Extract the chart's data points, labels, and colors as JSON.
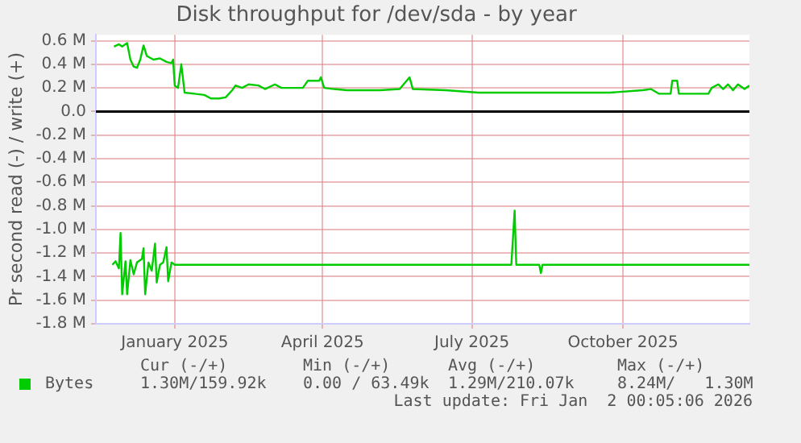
{
  "chart_data": {
    "type": "line",
    "title": "Disk throughput for /dev/sda - by year",
    "ylabel": "Pr second read (-) / write (+)",
    "xlim": [
      "2024-11-14",
      "2025-12-17"
    ],
    "xticks": [
      {
        "value": "2025-01-01",
        "label": "January 2025"
      },
      {
        "value": "2025-04-01",
        "label": "April 2025"
      },
      {
        "value": "2025-07-01",
        "label": "July 2025"
      },
      {
        "value": "2025-10-01",
        "label": "October 2025"
      }
    ],
    "ylim": [
      -1.8,
      0.65
    ],
    "yticks": [
      {
        "value": -1.8,
        "label": "-1.8 M"
      },
      {
        "value": -1.6,
        "label": "-1.6 M"
      },
      {
        "value": -1.4,
        "label": "-1.4 M"
      },
      {
        "value": -1.2,
        "label": "-1.2 M"
      },
      {
        "value": -1.0,
        "label": "-1.0 M"
      },
      {
        "value": -0.8,
        "label": "-0.8 M"
      },
      {
        "value": -0.6,
        "label": "-0.6 M"
      },
      {
        "value": -0.4,
        "label": "-0.4 M"
      },
      {
        "value": -0.2,
        "label": "-0.2 M"
      },
      {
        "value": 0,
        "label": "0.0"
      },
      {
        "value": 0.2,
        "label": "0.2 M"
      },
      {
        "value": 0.4,
        "label": "0.4 M"
      },
      {
        "value": 0.6,
        "label": "0.6 M"
      }
    ],
    "grid": true,
    "legend": "bottom",
    "marker": "none",
    "line_style": "solid",
    "ref_lines": [
      {
        "axis": "y",
        "value": 0,
        "color": "#000000"
      }
    ],
    "series": [
      {
        "name": "Bytes",
        "color": "#00cc00",
        "x": [
          "2024-11-25",
          "2024-11-28",
          "2024-11-30",
          "2024-12-03",
          "2024-12-05",
          "2024-12-07",
          "2024-12-09",
          "2024-12-11",
          "2024-12-13",
          "2024-12-15",
          "2024-12-19",
          "2024-12-23",
          "2024-12-27",
          "2024-12-30",
          "2024-12-31",
          "2025-01-01",
          "2025-01-03",
          "2025-01-05",
          "2025-01-07",
          "2025-01-13",
          "2025-01-19",
          "2025-01-23",
          "2025-01-28",
          "2025-02-01",
          "2025-02-05",
          "2025-02-07",
          "2025-02-11",
          "2025-02-15",
          "2025-02-21",
          "2025-02-25",
          "2025-03-03",
          "2025-03-07",
          "2025-03-15",
          "2025-03-20",
          "2025-03-23",
          "2025-03-30",
          "2025-03-31",
          "2025-04-02",
          "2025-04-08",
          "2025-04-16",
          "2025-04-24",
          "2025-05-06",
          "2025-05-18",
          "2025-05-24",
          "2025-05-26",
          "2025-06-15",
          "2025-07-05",
          "2025-07-25",
          "2025-08-14",
          "2025-09-03",
          "2025-09-23",
          "2025-10-13",
          "2025-10-18",
          "2025-10-23",
          "2025-10-30",
          "2025-10-31",
          "2025-11-03",
          "2025-11-04",
          "2025-11-22",
          "2025-11-24",
          "2025-11-28",
          "2025-12-01",
          "2025-12-04",
          "2025-12-07",
          "2025-12-10",
          "2025-12-14",
          "2025-12-17"
        ],
        "values": [
          0.55,
          0.57,
          0.55,
          0.58,
          0.44,
          0.38,
          0.37,
          0.44,
          0.56,
          0.47,
          0.44,
          0.45,
          0.42,
          0.41,
          0.44,
          0.22,
          0.2,
          0.4,
          0.16,
          0.15,
          0.14,
          0.11,
          0.11,
          0.12,
          0.18,
          0.22,
          0.2,
          0.23,
          0.22,
          0.19,
          0.23,
          0.2,
          0.2,
          0.2,
          0.26,
          0.26,
          0.29,
          0.2,
          0.19,
          0.18,
          0.18,
          0.18,
          0.19,
          0.29,
          0.19,
          0.18,
          0.16,
          0.16,
          0.16,
          0.16,
          0.16,
          0.18,
          0.19,
          0.15,
          0.15,
          0.26,
          0.26,
          0.15,
          0.15,
          0.2,
          0.23,
          0.19,
          0.23,
          0.18,
          0.23,
          0.19,
          0.22
        ]
      },
      {
        "color": "#00cc00",
        "x": [
          "2024-11-24",
          "2024-11-26",
          "2024-11-28",
          "2024-11-29",
          "2024-11-30",
          "2024-12-02",
          "2024-12-03",
          "2024-12-05",
          "2024-12-07",
          "2024-12-09",
          "2024-12-12",
          "2024-12-13",
          "2024-12-14",
          "2024-12-16",
          "2024-12-18",
          "2024-12-20",
          "2024-12-21",
          "2024-12-23",
          "2024-12-25",
          "2024-12-27",
          "2024-12-28",
          "2024-12-30",
          "2025-01-01",
          "2025-07-25",
          "2025-07-27",
          "2025-07-28",
          "2025-08-11",
          "2025-08-12",
          "2025-08-13",
          "2025-12-17"
        ],
        "values": [
          -1.3,
          -1.27,
          -1.33,
          -1.03,
          -1.55,
          -1.27,
          -1.55,
          -1.26,
          -1.38,
          -1.28,
          -1.25,
          -1.16,
          -1.55,
          -1.28,
          -1.35,
          -1.12,
          -1.45,
          -1.3,
          -1.28,
          -1.15,
          -1.44,
          -1.28,
          -1.3,
          -1.3,
          -0.84,
          -1.3,
          -1.3,
          -1.37,
          -1.3,
          -1.3
        ]
      }
    ],
    "annotations": [
      "Cur (-/+)",
      "1.30M/159.92k",
      "Min (-/+)",
      "0.00 / 63.49k",
      "Avg (-/+)",
      "1.29M/210.07k",
      "Max (-/+)",
      "8.24M/   1.30M",
      "Last update: Fri Jan  2 00:05:06 2026"
    ]
  }
}
